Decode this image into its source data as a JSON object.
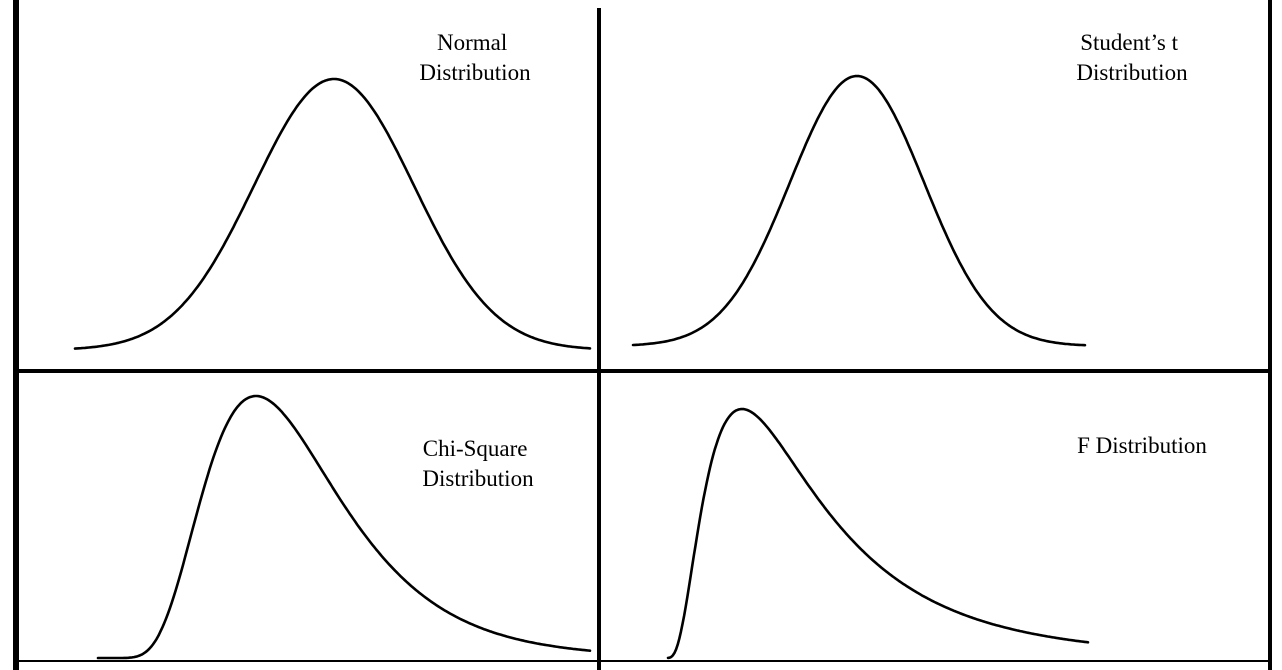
{
  "panels": [
    {
      "id": "normal",
      "label_lines": [
        "Normal",
        "Distribution"
      ]
    },
    {
      "id": "students-t",
      "label_lines": [
        "Student’s t",
        "Distribution"
      ]
    },
    {
      "id": "chi-square",
      "label_lines": [
        "Chi-Square",
        "Distribution"
      ]
    },
    {
      "id": "f",
      "label_lines": [
        "F Distribution"
      ]
    }
  ],
  "colors": {
    "line": "#000000",
    "background": "#ffffff"
  }
}
